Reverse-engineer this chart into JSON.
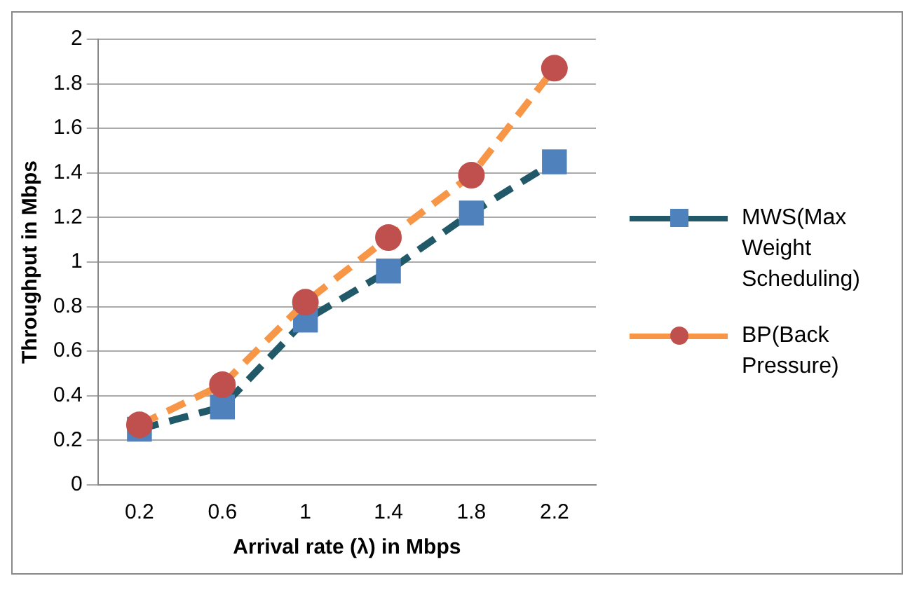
{
  "chart_data": {
    "type": "line",
    "xlabel": "Arrival rate (λ) in Mbps",
    "ylabel": "Throughput in Mbps",
    "categories": [
      "0.2",
      "0.6",
      "1",
      "1.4",
      "1.8",
      "2.2"
    ],
    "series": [
      {
        "name": "MWS(Max Weight Scheduling)",
        "color": "#215968",
        "marker": "square",
        "values": [
          0.25,
          0.35,
          0.74,
          0.96,
          1.22,
          1.45
        ]
      },
      {
        "name": "BP(Back Pressure)",
        "color": "#f79646",
        "marker": "circle",
        "values": [
          0.27,
          0.45,
          0.82,
          1.11,
          1.39,
          1.87
        ]
      }
    ],
    "ylim": [
      0,
      2
    ],
    "yticks": [
      0,
      0.2,
      0.4,
      0.6,
      0.8,
      1,
      1.2,
      1.4,
      1.6,
      1.8,
      2
    ],
    "grid": "y",
    "legend": "right",
    "line_style": "dashed"
  }
}
